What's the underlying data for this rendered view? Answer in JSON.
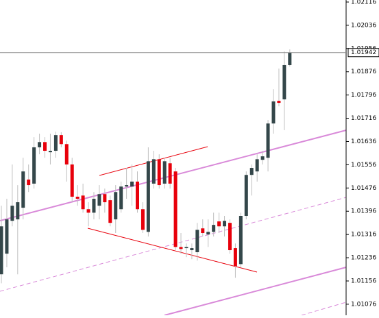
{
  "chart_data": {
    "type": "candlestick",
    "open": [
      1.01179,
      1.0125,
      1.01363,
      1.01368,
      1.01408,
      1.01505,
      1.01491,
      1.01616,
      1.01634,
      1.01599,
      1.01604,
      1.01658,
      1.01627,
      1.01557,
      1.01446,
      1.0145,
      1.01403,
      1.01391,
      1.01415,
      1.01455,
      1.01434,
      1.01368,
      1.01403,
      1.01481,
      1.01481,
      1.01498,
      1.01403,
      1.01325,
      1.01491,
      1.01575,
      1.01491,
      1.01561,
      1.01533,
      1.01273,
      1.01269,
      1.01262,
      1.01255,
      1.01337,
      1.01316,
      1.01325,
      1.01361,
      1.01344,
      1.01356,
      1.01269,
      1.01214,
      1.0138,
      1.01521,
      1.01533,
      1.01573,
      1.0158,
      1.01698,
      1.01776,
      1.01781,
      1.01899
    ],
    "high": [
      1.01415,
      1.01439,
      1.01557,
      1.01486,
      1.0158,
      1.01557,
      1.01651,
      1.01663,
      1.01651,
      1.01663,
      1.0167,
      1.01668,
      1.01639,
      1.0158,
      1.01486,
      1.01491,
      1.01427,
      1.01462,
      1.01486,
      1.01474,
      1.0145,
      1.01486,
      1.01498,
      1.01545,
      1.01557,
      1.01533,
      1.01427,
      1.01616,
      1.01604,
      1.01592,
      1.0158,
      1.0158,
      1.01545,
      1.01321,
      1.01285,
      1.01285,
      1.01356,
      1.01368,
      1.01368,
      1.01391,
      1.01391,
      1.0138,
      1.01368,
      1.01285,
      1.01391,
      1.01533,
      1.01557,
      1.01592,
      1.01604,
      1.0171,
      1.01816,
      1.01887,
      1.01946,
      1.01953
    ],
    "low": [
      1.01148,
      1.01203,
      1.01344,
      1.01179,
      1.01368,
      1.01462,
      1.01474,
      1.01592,
      1.0158,
      1.01557,
      1.0158,
      1.01616,
      1.01498,
      1.01427,
      1.01415,
      1.01391,
      1.01344,
      1.01368,
      1.01368,
      1.01391,
      1.01344,
      1.01321,
      1.01391,
      1.01439,
      1.01415,
      1.01391,
      1.01321,
      1.01309,
      1.01474,
      1.01474,
      1.01474,
      1.01474,
      1.01262,
      1.0125,
      1.01238,
      1.01231,
      1.01226,
      1.01309,
      1.01273,
      1.01309,
      1.01321,
      1.01309,
      1.0125,
      1.01167,
      1.01203,
      1.01368,
      1.0145,
      1.01498,
      1.01557,
      1.01533,
      1.01663,
      1.01757,
      1.01675,
      1.01894
    ],
    "close": [
      1.01344,
      1.01368,
      1.01415,
      1.01427,
      1.01533,
      1.01486,
      1.01616,
      1.01634,
      1.01604,
      1.01604,
      1.01658,
      1.01627,
      1.01557,
      1.01446,
      1.01439,
      1.01403,
      1.01391,
      1.01439,
      1.01455,
      1.01427,
      1.01356,
      1.01462,
      1.01481,
      1.01486,
      1.01498,
      1.01403,
      1.01332,
      1.01568,
      1.01575,
      1.01486,
      1.01568,
      1.01491,
      1.01273,
      1.01266,
      1.01273,
      1.01269,
      1.01332,
      1.01321,
      1.01325,
      1.01349,
      1.01344,
      1.01363,
      1.01262,
      1.01207,
      1.0138,
      1.01521,
      1.01545,
      1.01575,
      1.01585,
      1.01698,
      1.01774,
      1.01769,
      1.01899,
      1.01942
    ],
    "up_color": "#34474a",
    "down_color": "#e8000b",
    "wick_color": "#c0c0c0",
    "current_price": 1.01942,
    "ylim": [
      1.01038,
      1.02123
    ],
    "yticks": [
      1.02116,
      1.02036,
      1.01956,
      1.01876,
      1.01796,
      1.01716,
      1.01636,
      1.01556,
      1.01476,
      1.01396,
      1.01316,
      1.01236,
      1.01156,
      1.01076
    ]
  }
}
